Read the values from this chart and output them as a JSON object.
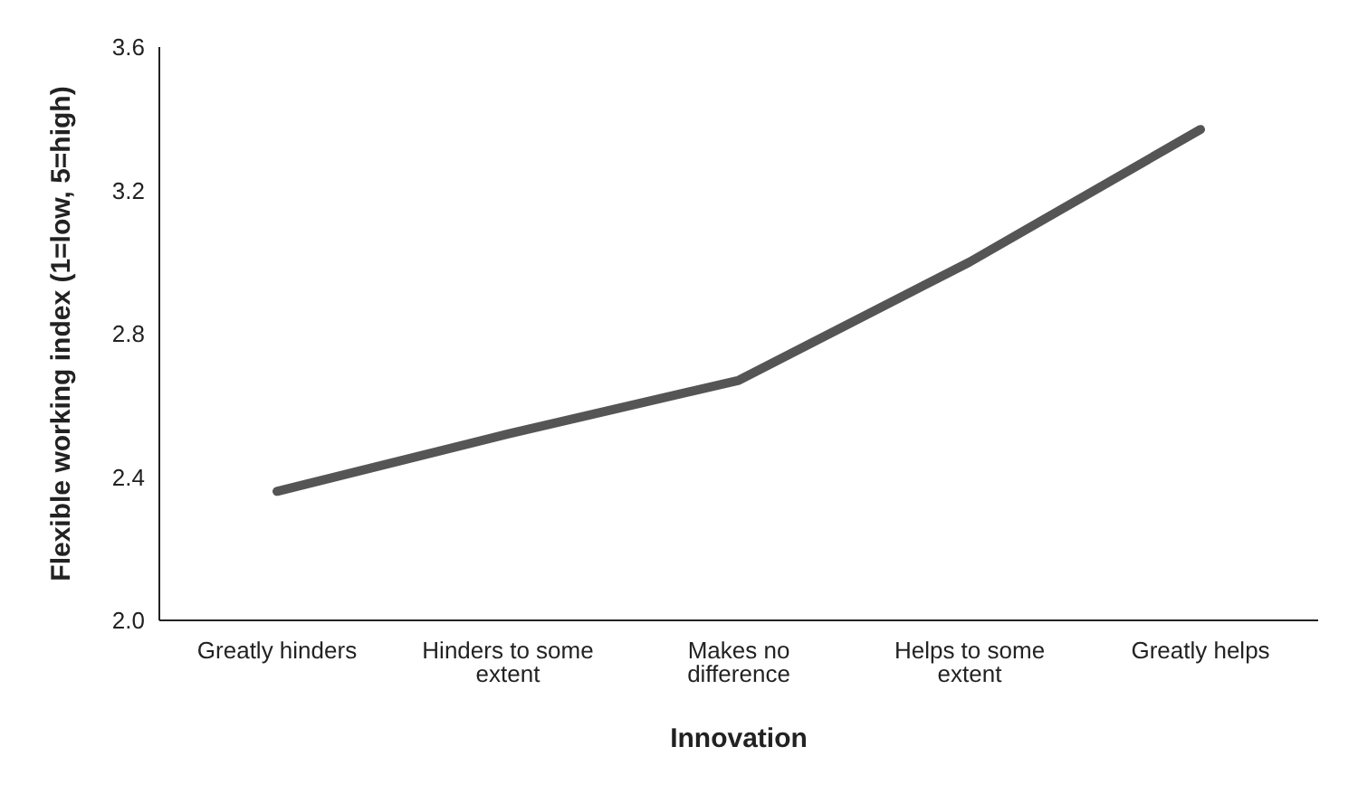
{
  "chart_data": {
    "type": "line",
    "xlabel": "Innovation",
    "ylabel": "Flexible working index (1=low, 5=high)",
    "categories": [
      "Greatly hinders",
      "Hinders to some extent",
      "Makes no difference",
      "Helps to some extent",
      "Greatly helps"
    ],
    "series": [
      {
        "color": "#555555",
        "values": [
          2.36,
          2.52,
          2.67,
          3.0,
          3.37
        ]
      }
    ],
    "ylim": [
      2.0,
      3.6
    ],
    "yticks": [
      {
        "value": 2.0,
        "label": "2.0"
      },
      {
        "value": 2.4,
        "label": "2.4"
      },
      {
        "value": 2.8,
        "label": "2.8"
      },
      {
        "value": 3.2,
        "label": "3.2"
      },
      {
        "value": 3.6,
        "label": "3.6"
      }
    ],
    "grid": false,
    "legend": false,
    "marker": "none",
    "line_style": "solid"
  }
}
